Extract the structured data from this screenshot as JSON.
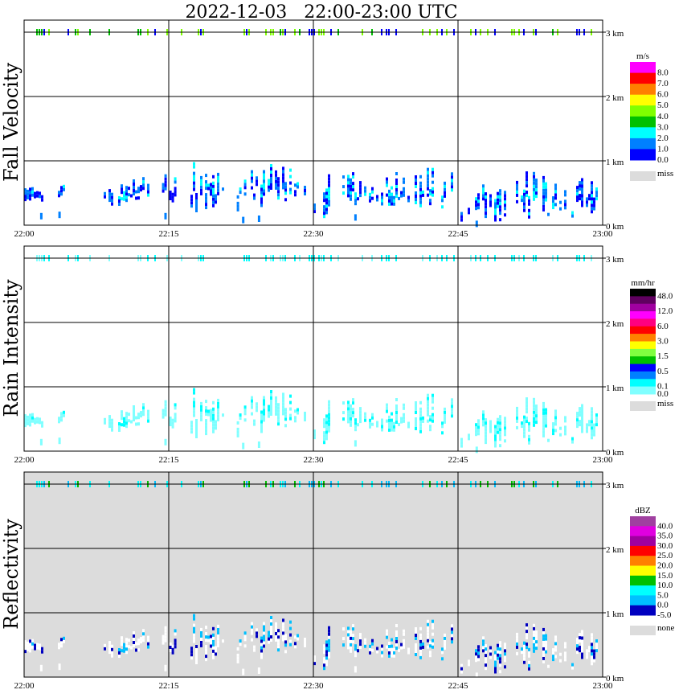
{
  "title": "2022-12-03   22:00-23:00 UTC",
  "chart_data": [
    {
      "type": "heatmap",
      "title": "Fall Velocity",
      "ylabel": "Fall Velocity",
      "x_ticks": [
        "22:00",
        "22:15",
        "22:30",
        "22:45",
        "23:00"
      ],
      "y_ticks": [
        "0 km",
        "1 km",
        "2 km",
        "3 km"
      ],
      "xlim_minutes": [
        0,
        60
      ],
      "ylim_km": [
        0,
        3.19
      ],
      "grid": true,
      "background": "#ffffff",
      "legend": {
        "unit": "m/s",
        "colors": [
          "#ff00ff",
          "#ff0000",
          "#ff8000",
          "#ffff00",
          "#80ff00",
          "#00c000",
          "#00ffff",
          "#0080ff",
          "#0000ff"
        ],
        "labels": [
          "8.0",
          "7.0",
          "6.0",
          "5.0",
          "4.0",
          "3.0",
          "2.0",
          "1.0",
          "0.0"
        ],
        "missing_label": "miss",
        "missing_color": "#dcdcdc"
      },
      "echo_colors": [
        "#0000ff",
        "#0080ff",
        "#0080ff",
        "#0000ff",
        "#00ffff"
      ],
      "band_colors": [
        "#80ff00",
        "#80ff00",
        "#00c000",
        "#0000ff"
      ]
    },
    {
      "type": "heatmap",
      "title": "Rain Intensity",
      "ylabel": "Rain Intensity",
      "x_ticks": [
        "22:00",
        "22:15",
        "22:30",
        "22:45",
        "23:00"
      ],
      "y_ticks": [
        "0 km",
        "1 km",
        "2 km",
        "3 km"
      ],
      "xlim_minutes": [
        0,
        60
      ],
      "ylim_km": [
        0,
        3.19
      ],
      "grid": true,
      "background": "#ffffff",
      "legend": {
        "unit": "mm/hr",
        "colors": [
          "#000000",
          "#600060",
          "#a000a0",
          "#ff00ff",
          "#ff0080",
          "#ff0000",
          "#ff8000",
          "#ffff00",
          "#80ff40",
          "#00c000",
          "#0000ff",
          "#0080ff",
          "#00ffff",
          "#80ffff"
        ],
        "labels": [
          "48.0",
          "",
          "12.0",
          "",
          "6.0",
          "",
          "3.0",
          "",
          "1.5",
          "",
          "0.5",
          "",
          "0.1",
          "0.0"
        ],
        "missing_label": "miss",
        "missing_color": "#dcdcdc"
      },
      "echo_colors": [
        "#80ffff",
        "#80ffff",
        "#80ffff",
        "#80ffff",
        "#00ffff"
      ],
      "band_colors": [
        "#80ffff",
        "#00ffff",
        "#80ffff",
        "#00ffff"
      ]
    },
    {
      "type": "heatmap",
      "title": "Reflectivity",
      "ylabel": "Reflectivity",
      "x_ticks": [
        "22:00",
        "22:15",
        "22:30",
        "22:45",
        "23:00"
      ],
      "y_ticks": [
        "0 km",
        "1 km",
        "2 km",
        "3 km"
      ],
      "xlim_minutes": [
        0,
        60
      ],
      "ylim_km": [
        0,
        3.19
      ],
      "grid": true,
      "background": "#dcdcdc",
      "legend": {
        "unit": "dBZ",
        "colors": [
          "#a040a0",
          "#e000e0",
          "#a000a0",
          "#ff0000",
          "#ff8000",
          "#ffff00",
          "#00c000",
          "#00ffff",
          "#00c0ff",
          "#0000c0"
        ],
        "labels": [
          "40.0",
          "35.0",
          "30.0",
          "25.0",
          "20.0",
          "15.0",
          "10.0",
          "5.0",
          "0.0",
          "-5.0"
        ],
        "missing_label": "none",
        "missing_color": "#dcdcdc"
      },
      "echo_colors": [
        "#ffffff",
        "#ffffff",
        "#ffffff",
        "#0000c0",
        "#00c0ff"
      ],
      "band_colors": [
        "#00ffff",
        "#00c000",
        "#00ffff",
        "#00c0ff"
      ]
    }
  ],
  "echo_clusters_minutes_km": [
    [
      0.0,
      2.5,
      0.35,
      0.55
    ],
    [
      3.5,
      4.2,
      0.4,
      0.6
    ],
    [
      8.0,
      13.0,
      0.3,
      0.7
    ],
    [
      14.3,
      15.8,
      0.35,
      0.75
    ],
    [
      17.0,
      21.0,
      0.2,
      0.95
    ],
    [
      21.8,
      23.0,
      0.2,
      0.85
    ],
    [
      23.5,
      29.5,
      0.25,
      0.9
    ],
    [
      30.0,
      32.0,
      0.1,
      0.8
    ],
    [
      33.0,
      40.0,
      0.3,
      0.8
    ],
    [
      40.5,
      45.0,
      0.2,
      0.9
    ],
    [
      45.0,
      50.0,
      0.05,
      0.7
    ],
    [
      51.0,
      55.5,
      0.1,
      0.8
    ],
    [
      55.5,
      60.0,
      0.1,
      0.7
    ]
  ],
  "band_height_km": 3.0
}
